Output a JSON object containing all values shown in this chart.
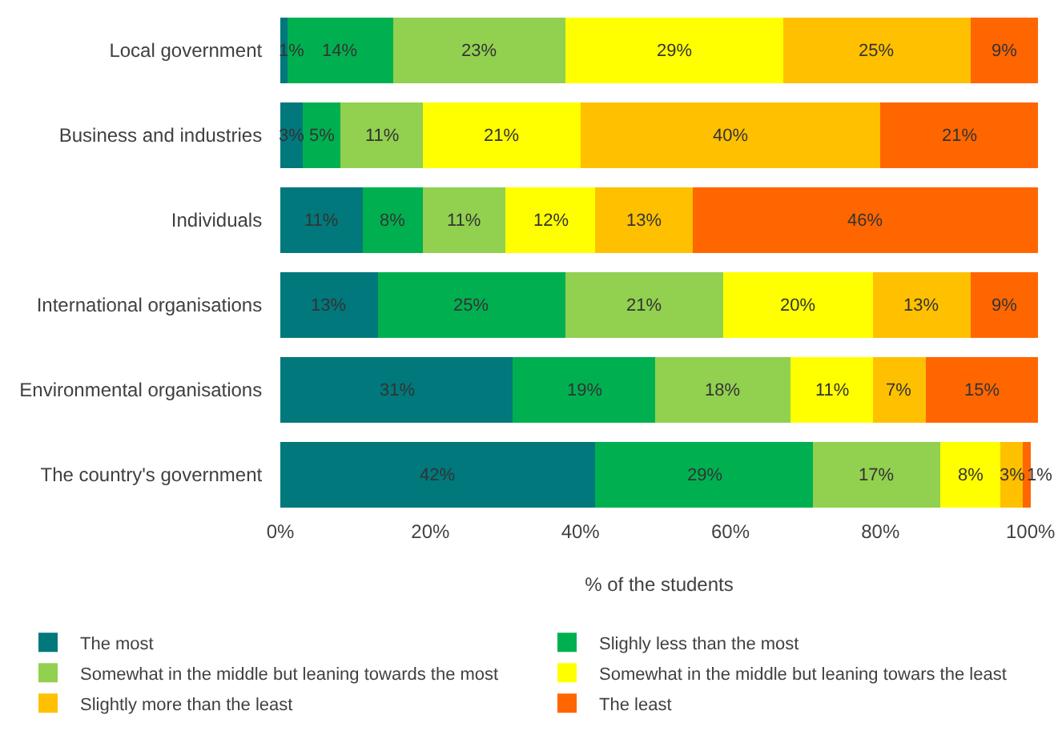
{
  "chart_data": {
    "type": "bar",
    "orientation": "horizontal",
    "stacked": true,
    "xlabel": "% of the students",
    "categories": [
      "Local government",
      "Business and industries",
      "Individuals",
      "International organisations",
      "Environmental organisations",
      "The country's government"
    ],
    "series": [
      {
        "name": "The most",
        "color": "#00787c",
        "values": [
          1,
          3,
          11,
          13,
          31,
          42
        ],
        "value_labels": [
          "1%",
          "3%",
          "11%",
          "13%",
          "31%",
          "42%"
        ]
      },
      {
        "name": "Slighly less than the most",
        "color": "#00b050",
        "values": [
          14,
          5,
          8,
          25,
          19,
          29
        ],
        "value_labels": [
          "14%",
          "5%",
          "8%",
          "25%",
          "19%",
          "29%"
        ]
      },
      {
        "name": "Somewhat in the middle but leaning towards the most",
        "color": "#92d050",
        "values": [
          23,
          11,
          11,
          21,
          18,
          17
        ],
        "value_labels": [
          "23%",
          "11%",
          "11%",
          "21%",
          "18%",
          "17%"
        ]
      },
      {
        "name": "Somewhat in the middle but leaning towars the least",
        "color": "#ffff00",
        "values": [
          29,
          21,
          12,
          20,
          11,
          8
        ],
        "value_labels": [
          "29%",
          "21%",
          "12%",
          "20%",
          "11%",
          "8%"
        ]
      },
      {
        "name": "Slightly more than the least",
        "color": "#ffc000",
        "values": [
          25,
          40,
          13,
          13,
          7,
          3
        ],
        "value_labels": [
          "25%",
          "40%",
          "13%",
          "13%",
          "7%",
          "3%"
        ]
      },
      {
        "name": "The least",
        "color": "#ff6600",
        "values": [
          9,
          21,
          46,
          9,
          15,
          1
        ],
        "value_labels": [
          "9%",
          "21%",
          "46%",
          "9%",
          "15%",
          "1%"
        ]
      }
    ],
    "xlim": [
      0,
      101
    ],
    "xticks": [
      {
        "value": 0,
        "label": "0%"
      },
      {
        "value": 20,
        "label": "20%"
      },
      {
        "value": 40,
        "label": "40%"
      },
      {
        "value": 60,
        "label": "60%"
      },
      {
        "value": 80,
        "label": "80%"
      },
      {
        "value": 100,
        "label": "100%"
      }
    ],
    "grid": false,
    "legend": "bottom"
  }
}
